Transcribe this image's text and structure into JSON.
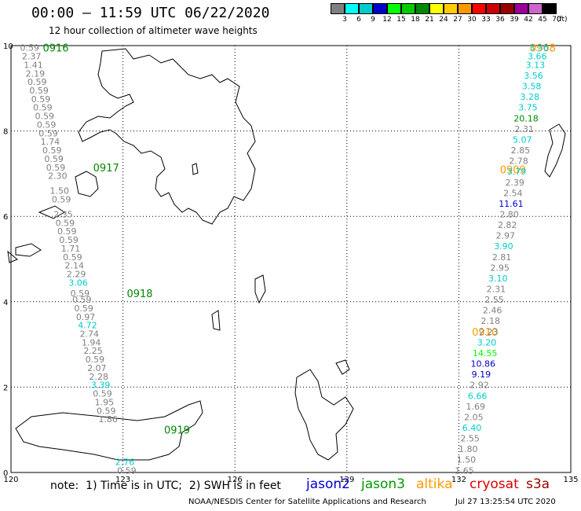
{
  "title": "00:00 – 11:59 UTC 06/22/2020",
  "subtitle": "12 hour collection of altimeter wave heights",
  "footer": {
    "note": "note:  1) Time is in UTC;  2) SWH is in feet",
    "center": "NOAA/NESDIS Center for Satellite Applications and Research",
    "generated": "Jul 27 13:25:54 UTC 2020"
  },
  "satellites": [
    {
      "name": "jason2",
      "color": "#0000cc"
    },
    {
      "name": "jason3",
      "color": "#009900"
    },
    {
      "name": "altika",
      "color": "#ff9900"
    },
    {
      "name": "cryosat",
      "color": "#dd0000"
    },
    {
      "name": "s3a",
      "color": "#990000"
    }
  ],
  "scale": {
    "unit": "(ft)",
    "ticks": [
      "3",
      "6",
      "9",
      "12",
      "15",
      "18",
      "21",
      "24",
      "27",
      "30",
      "33",
      "36",
      "39",
      "42",
      "45",
      "70"
    ],
    "colors": [
      "#808080",
      "#00ffff",
      "#00cccc",
      "#0000cc",
      "#00ff00",
      "#00cc00",
      "#008800",
      "#ffff00",
      "#ffcc00",
      "#ff9900",
      "#ff0000",
      "#cc0000",
      "#990000",
      "#990099",
      "#cc66cc",
      "#000000"
    ]
  },
  "map": {
    "lon_ticks": [
      120,
      123,
      126,
      129,
      132,
      135
    ],
    "lat_ticks": [
      0,
      2,
      4,
      6,
      8,
      10
    ]
  },
  "track_labels": [
    {
      "text": "0916",
      "lon": 121.2,
      "lat": 9.95,
      "color": "#008800"
    },
    {
      "text": "0917",
      "lon": 122.55,
      "lat": 7.15,
      "color": "#008800"
    },
    {
      "text": "0918",
      "lon": 123.45,
      "lat": 4.2,
      "color": "#008800"
    },
    {
      "text": "0919",
      "lon": 124.45,
      "lat": 1.0,
      "color": "#008800"
    },
    {
      "text": "0908",
      "lon": 134.25,
      "lat": 9.95,
      "color": "#ff9900"
    },
    {
      "text": "0909",
      "lon": 133.45,
      "lat": 7.1,
      "color": "#ff9900"
    },
    {
      "text": "0910",
      "lon": 132.7,
      "lat": 3.3,
      "color": "#ff9900"
    }
  ],
  "tracks": [
    {
      "name": "west",
      "points": [
        [
          "0.59",
          120.5,
          9.95,
          "#808080"
        ],
        [
          "2.37",
          120.55,
          9.75,
          "#808080"
        ],
        [
          "1.41",
          120.6,
          9.55,
          "#808080"
        ],
        [
          "2.19",
          120.65,
          9.35,
          "#808080"
        ],
        [
          "0.59",
          120.7,
          9.15,
          "#808080"
        ],
        [
          "0.59",
          120.75,
          8.95,
          "#808080"
        ],
        [
          "0.59",
          120.8,
          8.75,
          "#808080"
        ],
        [
          "0.59",
          120.85,
          8.55,
          "#808080"
        ],
        [
          "0.59",
          120.9,
          8.35,
          "#808080"
        ],
        [
          "0.59",
          120.95,
          8.15,
          "#808080"
        ],
        [
          "0.59",
          121.0,
          7.95,
          "#808080"
        ],
        [
          "1.74",
          121.05,
          7.75,
          "#808080"
        ],
        [
          "0.59",
          121.1,
          7.55,
          "#808080"
        ],
        [
          "0.59",
          121.15,
          7.35,
          "#808080"
        ],
        [
          "0.59",
          121.2,
          7.15,
          "#808080"
        ],
        [
          "2.30",
          121.25,
          6.95,
          "#808080"
        ],
        [
          "1.50",
          121.3,
          6.6,
          "#808080"
        ],
        [
          "0.59",
          121.35,
          6.4,
          "#808080"
        ],
        [
          "2.35",
          121.4,
          6.05,
          "#808080"
        ],
        [
          "0.59",
          121.45,
          5.85,
          "#808080"
        ],
        [
          "0.59",
          121.5,
          5.65,
          "#808080"
        ],
        [
          "0.59",
          121.55,
          5.45,
          "#808080"
        ],
        [
          "1.71",
          121.6,
          5.25,
          "#808080"
        ],
        [
          "0.59",
          121.65,
          5.05,
          "#808080"
        ],
        [
          "2.14",
          121.7,
          4.85,
          "#808080"
        ],
        [
          "2.29",
          121.75,
          4.65,
          "#808080"
        ],
        [
          "3.06",
          121.8,
          4.45,
          "#00cccc"
        ],
        [
          "0.59",
          121.85,
          4.2,
          "#808080"
        ],
        [
          "0.59",
          121.9,
          4.05,
          "#808080"
        ],
        [
          "0.59",
          121.95,
          3.85,
          "#808080"
        ],
        [
          "0.97",
          122.0,
          3.65,
          "#808080"
        ],
        [
          "4.72",
          122.05,
          3.45,
          "#00cccc"
        ],
        [
          "2.74",
          122.1,
          3.25,
          "#808080"
        ],
        [
          "1.94",
          122.15,
          3.05,
          "#808080"
        ],
        [
          "2.25",
          122.2,
          2.85,
          "#808080"
        ],
        [
          "0.59",
          122.25,
          2.65,
          "#808080"
        ],
        [
          "2.07",
          122.3,
          2.45,
          "#808080"
        ],
        [
          "2.28",
          122.35,
          2.25,
          "#808080"
        ],
        [
          "3.39",
          122.4,
          2.05,
          "#00cccc"
        ],
        [
          "0.59",
          122.45,
          1.85,
          "#808080"
        ],
        [
          "1.95",
          122.5,
          1.65,
          "#808080"
        ],
        [
          "0.59",
          122.55,
          1.45,
          "#808080"
        ],
        [
          "1.86",
          122.6,
          1.25,
          "#808080"
        ],
        [
          "2.76",
          123.05,
          0.25,
          "#00cccc"
        ],
        [
          "0.59",
          123.1,
          0.05,
          "#808080"
        ]
      ]
    },
    {
      "name": "east",
      "points": [
        [
          "3.36",
          134.15,
          9.95,
          "#00cccc"
        ],
        [
          "3.66",
          134.1,
          9.75,
          "#00cccc"
        ],
        [
          "3.13",
          134.05,
          9.55,
          "#00cccc"
        ],
        [
          "3.56",
          134.0,
          9.3,
          "#00cccc"
        ],
        [
          "3.58",
          133.95,
          9.05,
          "#00cccc"
        ],
        [
          "3.28",
          133.9,
          8.8,
          "#00cccc"
        ],
        [
          "3.75",
          133.85,
          8.55,
          "#00cccc"
        ],
        [
          "20.18",
          133.8,
          8.3,
          "#008800"
        ],
        [
          "2.31",
          133.75,
          8.05,
          "#808080"
        ],
        [
          "5.07",
          133.7,
          7.8,
          "#00cccc"
        ],
        [
          "2.85",
          133.65,
          7.55,
          "#808080"
        ],
        [
          "2.78",
          133.6,
          7.3,
          "#808080"
        ],
        [
          "3.79",
          133.55,
          7.05,
          "#00cccc"
        ],
        [
          "2.39",
          133.5,
          6.8,
          "#808080"
        ],
        [
          "2.54",
          133.45,
          6.55,
          "#808080"
        ],
        [
          "11.61",
          133.4,
          6.3,
          "#0000cc"
        ],
        [
          "2.80",
          133.35,
          6.05,
          "#808080"
        ],
        [
          "2.82",
          133.3,
          5.8,
          "#808080"
        ],
        [
          "2.97",
          133.25,
          5.55,
          "#808080"
        ],
        [
          "3.90",
          133.2,
          5.3,
          "#00cccc"
        ],
        [
          "2.81",
          133.15,
          5.05,
          "#808080"
        ],
        [
          "2.95",
          133.1,
          4.8,
          "#808080"
        ],
        [
          "3.10",
          133.05,
          4.55,
          "#00cccc"
        ],
        [
          "2.31",
          133.0,
          4.3,
          "#808080"
        ],
        [
          "2.55",
          132.95,
          4.05,
          "#808080"
        ],
        [
          "2.46",
          132.9,
          3.8,
          "#808080"
        ],
        [
          "2.18",
          132.85,
          3.55,
          "#808080"
        ],
        [
          "2.23",
          132.8,
          3.3,
          "#808080"
        ],
        [
          "3.20",
          132.75,
          3.05,
          "#00cccc"
        ],
        [
          "14.55",
          132.7,
          2.8,
          "#00ff00"
        ],
        [
          "10.86",
          132.65,
          2.55,
          "#0000cc"
        ],
        [
          "9.19",
          132.6,
          2.3,
          "#0000cc"
        ],
        [
          "2.92",
          132.55,
          2.05,
          "#808080"
        ],
        [
          "6.66",
          132.5,
          1.8,
          "#00cccc"
        ],
        [
          "1.69",
          132.45,
          1.55,
          "#808080"
        ],
        [
          "2.05",
          132.4,
          1.3,
          "#808080"
        ],
        [
          "6.40",
          132.35,
          1.05,
          "#00cccc"
        ],
        [
          "2.55",
          132.3,
          0.8,
          "#808080"
        ],
        [
          "1.80",
          132.25,
          0.55,
          "#808080"
        ],
        [
          "1.50",
          132.2,
          0.3,
          "#808080"
        ],
        [
          "1.65",
          132.15,
          0.05,
          "#808080"
        ]
      ]
    }
  ]
}
